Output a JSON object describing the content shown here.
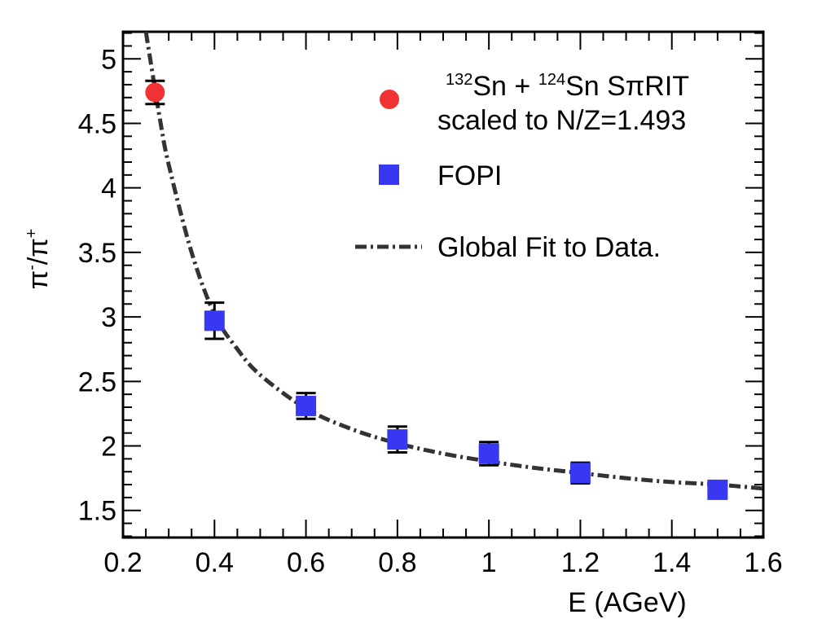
{
  "chart_data": {
    "type": "scatter",
    "xlabel": "E (AGeV)",
    "ylabel_parts": [
      "π",
      "-",
      "/π",
      "+"
    ],
    "xlim": [
      0.2,
      1.6
    ],
    "ylim": [
      1.29,
      5.21
    ],
    "xticks": [
      "0.2",
      "0.4",
      "0.6",
      "0.8",
      "1",
      "1.2",
      "1.4",
      "1.6"
    ],
    "yticks": [
      "1.5",
      "2",
      "2.5",
      "3",
      "3.5",
      "4",
      "4.5",
      "5"
    ],
    "grid": false,
    "legend_position": "top-right",
    "series": [
      {
        "legend": {
          "line1_parts": [
            "132",
            "Sn + ",
            "124",
            "Sn SπRIT"
          ],
          "line2": "scaled to N/Z=1.493"
        },
        "marker": "circle",
        "color": "#f03232",
        "points": [
          {
            "x": 0.27,
            "y": 4.74,
            "err": 0.09
          }
        ]
      },
      {
        "legend": {
          "line1": "FOPI"
        },
        "marker": "square",
        "color": "#3838f2",
        "points": [
          {
            "x": 0.4,
            "y": 2.97,
            "err": 0.14
          },
          {
            "x": 0.6,
            "y": 2.31,
            "err": 0.1
          },
          {
            "x": 0.8,
            "y": 2.05,
            "err": 0.1
          },
          {
            "x": 1.0,
            "y": 1.94,
            "err": 0.09
          },
          {
            "x": 1.2,
            "y": 1.79,
            "err": 0.08
          },
          {
            "x": 1.5,
            "y": 1.66,
            "err": 0.06
          }
        ]
      }
    ],
    "fit": {
      "legend": "Global Fit to Data.",
      "style": "dash-dot",
      "color": "#333333",
      "points": [
        {
          "x": 0.25,
          "y": 5.21
        },
        {
          "x": 0.28,
          "y": 4.55
        },
        {
          "x": 0.3,
          "y": 4.18
        },
        {
          "x": 0.35,
          "y": 3.5
        },
        {
          "x": 0.4,
          "y": 3.02
        },
        {
          "x": 0.45,
          "y": 2.75
        },
        {
          "x": 0.5,
          "y": 2.55
        },
        {
          "x": 0.6,
          "y": 2.29
        },
        {
          "x": 0.7,
          "y": 2.13
        },
        {
          "x": 0.8,
          "y": 2.02
        },
        {
          "x": 0.9,
          "y": 1.94
        },
        {
          "x": 1.0,
          "y": 1.88
        },
        {
          "x": 1.1,
          "y": 1.83
        },
        {
          "x": 1.2,
          "y": 1.79
        },
        {
          "x": 1.3,
          "y": 1.75
        },
        {
          "x": 1.4,
          "y": 1.72
        },
        {
          "x": 1.5,
          "y": 1.7
        },
        {
          "x": 1.6,
          "y": 1.67
        }
      ]
    }
  }
}
